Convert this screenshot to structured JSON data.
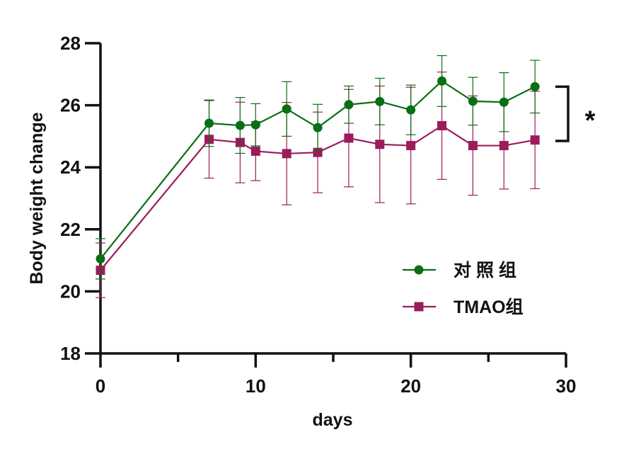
{
  "chart_data": {
    "type": "line",
    "title": "",
    "xlabel": "days",
    "ylabel": "Body weight change",
    "xlim": [
      0,
      30
    ],
    "ylim": [
      18,
      28
    ],
    "xticks": [
      0,
      10,
      20,
      30
    ],
    "xtick_labels": [
      "0",
      "10",
      "20",
      "30"
    ],
    "x_minor_ticks": [
      5,
      15,
      25
    ],
    "yticks": [
      18,
      20,
      22,
      24,
      26,
      28
    ],
    "ytick_labels": [
      "18",
      "20",
      "22",
      "24",
      "26",
      "28"
    ],
    "grid": false,
    "legend_position": "center-right",
    "series": [
      {
        "name": "对 照 组",
        "color": "#0a6e14",
        "marker": "circle",
        "x": [
          0,
          7,
          9,
          10,
          12,
          14,
          16,
          18,
          20,
          22,
          24,
          26,
          28
        ],
        "y": [
          21.05,
          25.42,
          25.35,
          25.37,
          25.88,
          25.28,
          26.02,
          26.12,
          25.85,
          26.78,
          26.13,
          26.1,
          26.6
        ],
        "error": [
          0.65,
          0.75,
          0.9,
          0.68,
          0.88,
          0.75,
          0.6,
          0.75,
          0.8,
          0.82,
          0.77,
          0.95,
          0.85
        ]
      },
      {
        "name": "TMAO组",
        "color": "#9c1b5b",
        "marker": "square",
        "x": [
          0,
          7,
          9,
          10,
          12,
          14,
          16,
          18,
          20,
          22,
          24,
          26,
          28
        ],
        "y": [
          20.68,
          24.9,
          24.8,
          24.52,
          24.44,
          24.48,
          24.94,
          24.74,
          24.7,
          25.34,
          24.7,
          24.7,
          24.88
        ],
        "error": [
          0.88,
          1.25,
          1.3,
          0.95,
          1.65,
          1.3,
          1.57,
          1.88,
          1.88,
          1.73,
          1.6,
          1.4,
          1.57
        ]
      }
    ],
    "significance": {
      "label": "*",
      "y_range": [
        24.85,
        26.6
      ]
    }
  }
}
